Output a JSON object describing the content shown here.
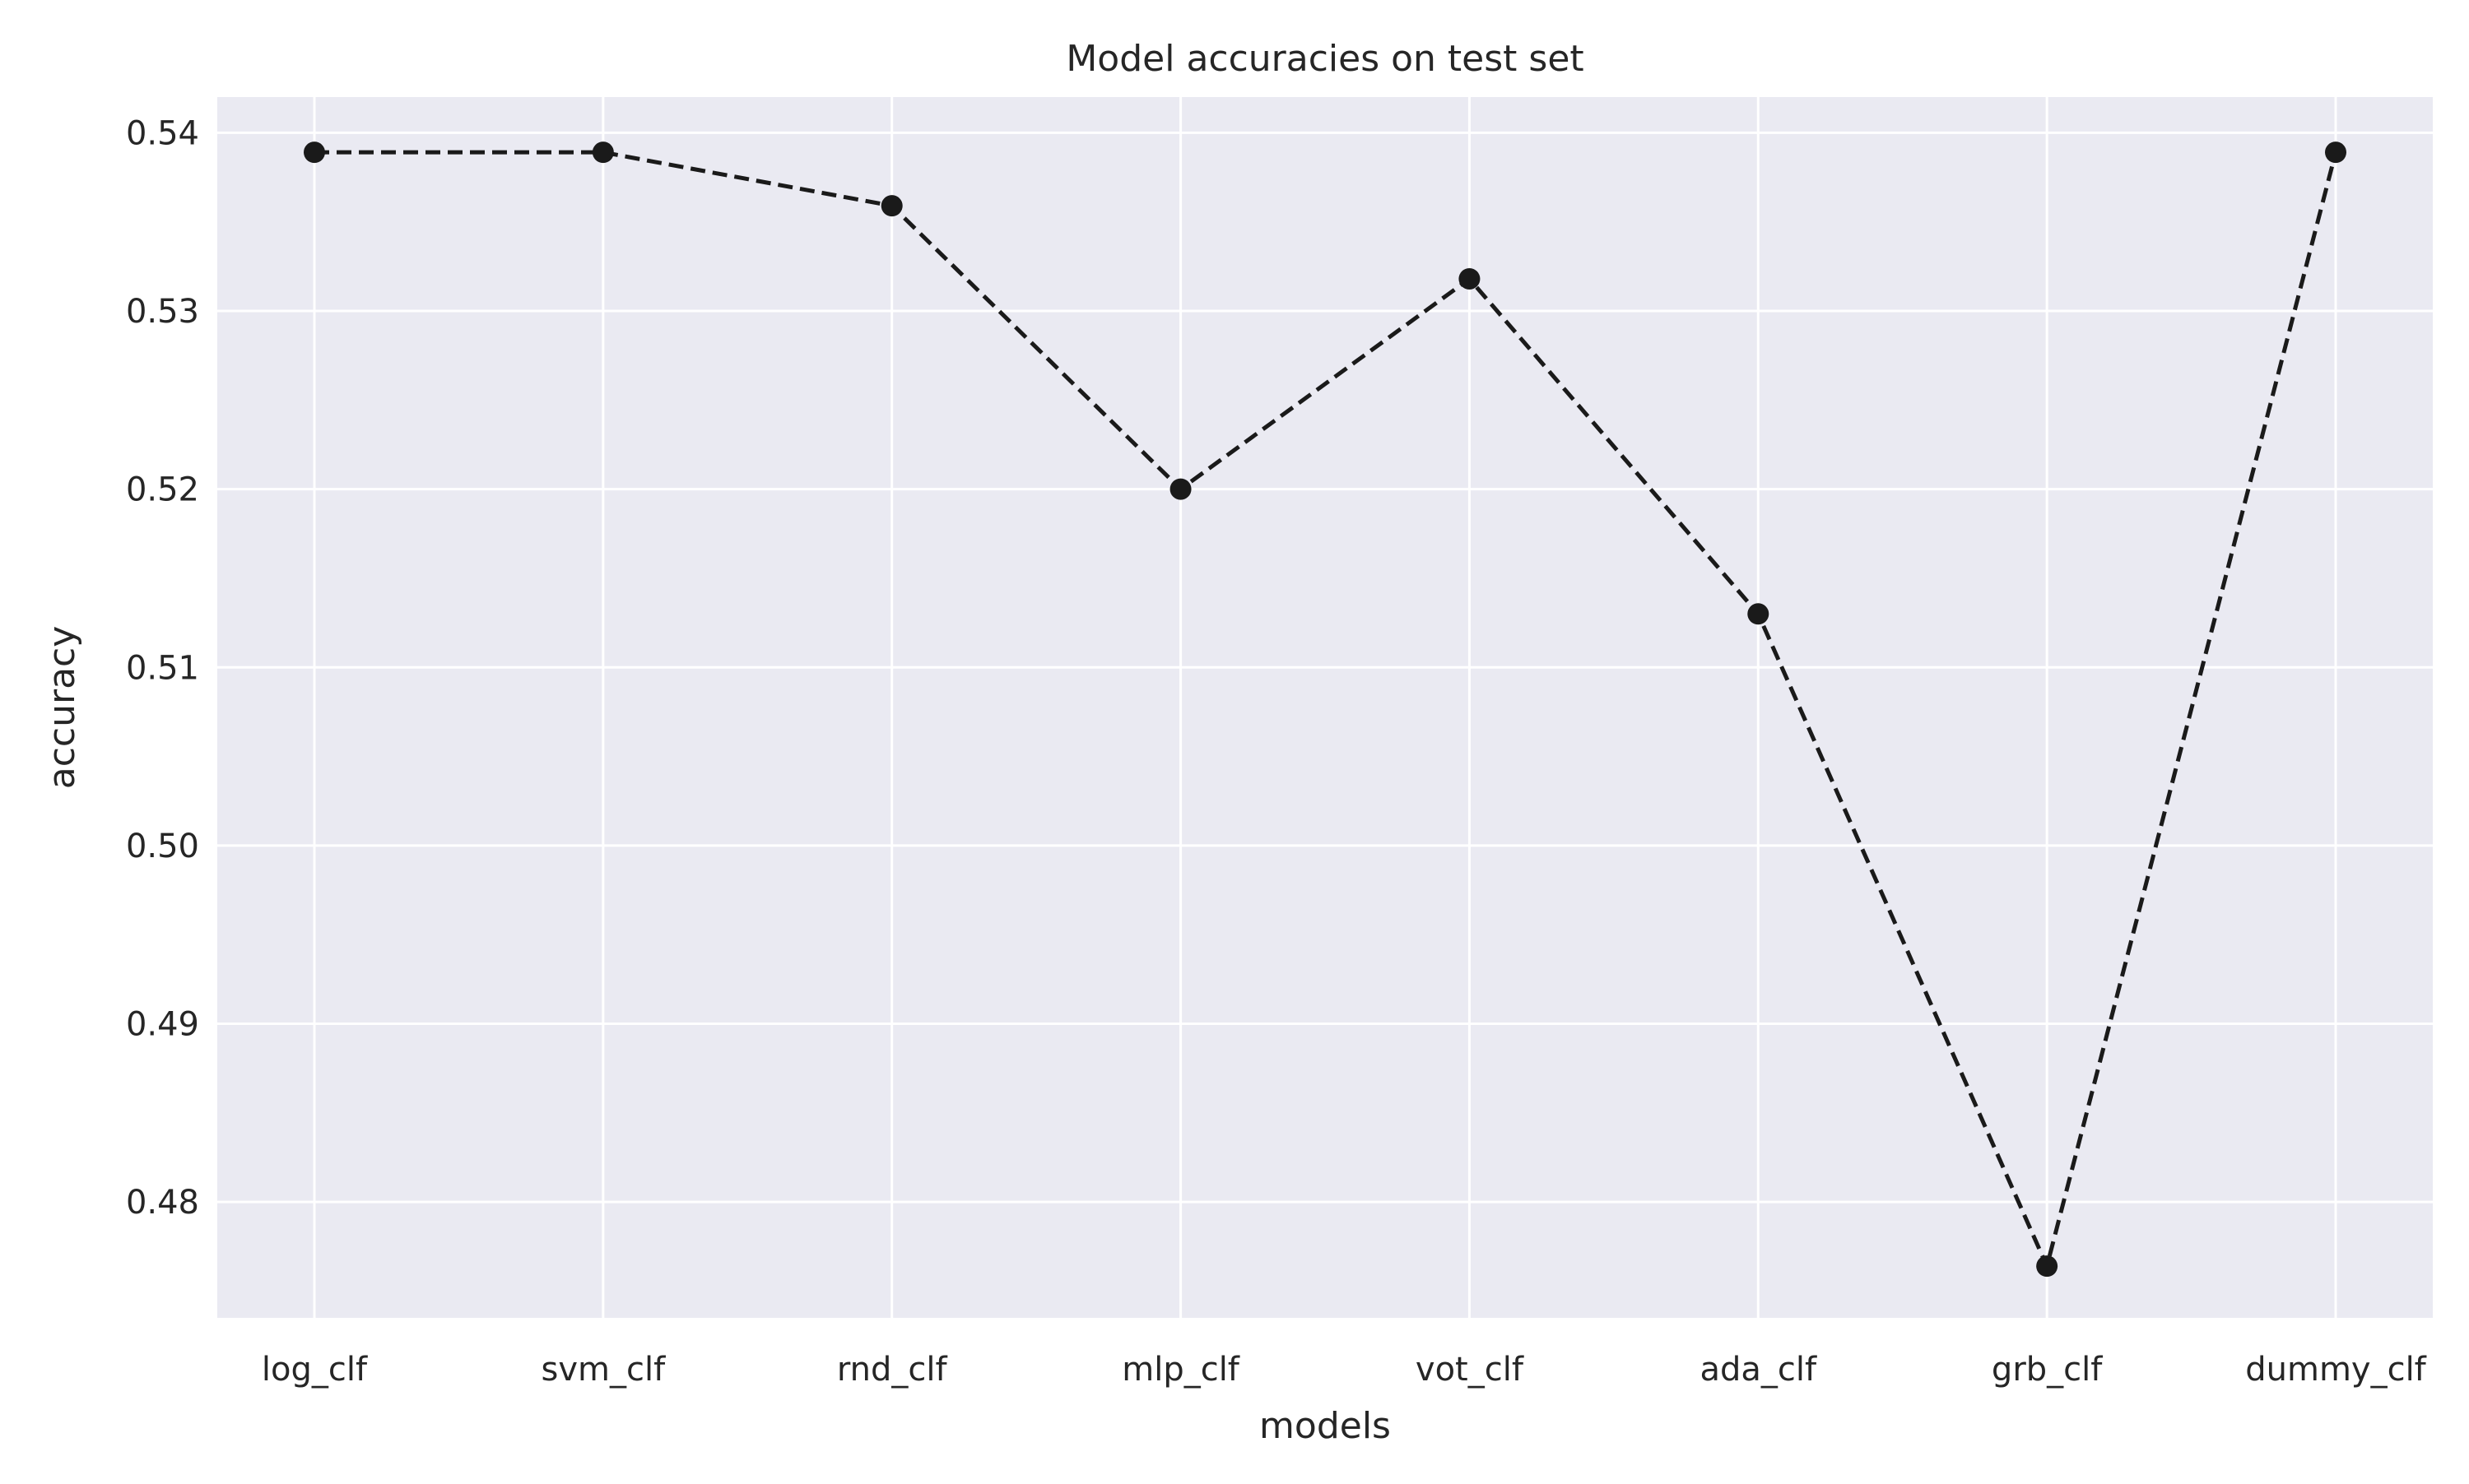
{
  "chart_data": {
    "type": "line",
    "title": "Model accuracies on test set",
    "xlabel": "models",
    "ylabel": "accuracy",
    "categories": [
      "log_clf",
      "svm_clf",
      "rnd_clf",
      "mlp_clf",
      "vot_clf",
      "ada_clf",
      "grb_clf",
      "dummy_clf"
    ],
    "series": [
      {
        "values": [
          0.5389,
          0.5389,
          0.5359,
          0.52,
          0.5318,
          0.513,
          0.4764,
          0.5389
        ]
      }
    ],
    "ylim": [
      0.4735,
      0.542
    ],
    "yticks": [
      "0.48",
      "0.49",
      "0.50",
      "0.51",
      "0.52",
      "0.53",
      "0.54"
    ],
    "grid": true,
    "legend": "none",
    "colors": {
      "plot_background": "#eaeaf2",
      "grid": "#ffffff",
      "line": "#1a1a1a",
      "marker": "#1a1a1a"
    },
    "line_style": "dashed",
    "marker": "circle"
  }
}
